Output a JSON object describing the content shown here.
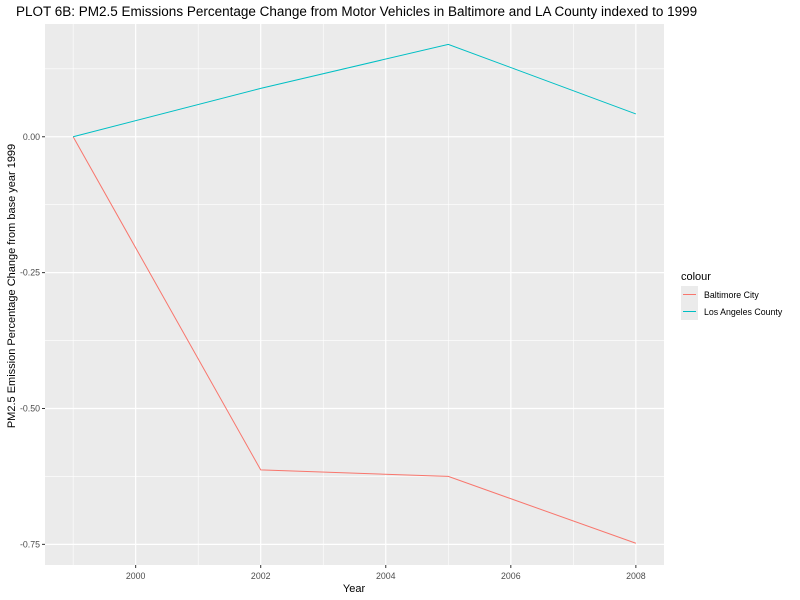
{
  "chart_data": {
    "type": "line",
    "title": "PLOT 6B: PM2.5 Emissions Percentage Change from Motor Vehicles in Baltimore and LA County indexed to 1999",
    "xlabel": "Year",
    "ylabel": "PM2.5 Emission Percentage Change from base year 1999",
    "x": [
      1999,
      2002,
      2005,
      2008
    ],
    "xlim": [
      1998.55,
      2008.45
    ],
    "ylim": [
      -0.788,
      0.2075
    ],
    "x_ticks": [
      2000,
      2002,
      2004,
      2006,
      2008
    ],
    "x_tick_labels": [
      "2000",
      "2002",
      "2004",
      "2006",
      "2008"
    ],
    "y_ticks": [
      0.0,
      -0.25,
      -0.5,
      -0.75
    ],
    "y_tick_labels": [
      "0.00",
      "-0.25",
      "-0.50",
      "-0.75"
    ],
    "grid": true,
    "legend": {
      "title": "colour",
      "position": "right",
      "entries": [
        "Baltimore City",
        "Los Angeles County"
      ]
    },
    "series": [
      {
        "name": "Baltimore City",
        "color": "#F8766D",
        "values": [
          0.0,
          -0.613,
          -0.625,
          -0.748
        ]
      },
      {
        "name": "Los Angeles County",
        "color": "#00BFC4",
        "values": [
          0.0,
          0.089,
          0.17,
          0.042
        ]
      }
    ]
  },
  "colors": {
    "panel_background": "#EBEBEB",
    "grid_major": "#FFFFFF",
    "tick_text": "#4D4D4D"
  }
}
